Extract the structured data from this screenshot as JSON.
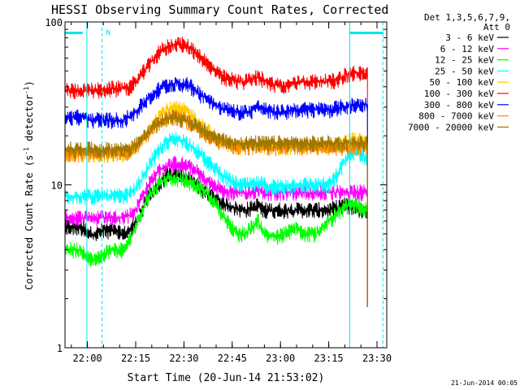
{
  "chart_data": {
    "type": "line",
    "title": "HESSI Observing Summary Count Rates, Corrected",
    "xlabel": "Start Time (20-Jun-14 21:53:02)",
    "ylabel": "Corrected Count Rate (s⁻¹ detector⁻¹)",
    "ylabel_main": "Corrected Count Rate (s",
    "ylabel_sup1": "-1",
    "ylabel_mid": " detector",
    "ylabel_sup2": "-1",
    "ylabel_end": ")",
    "x_unit": "minutes since 21:53:02",
    "xlim": [
      0,
      100
    ],
    "ylim": [
      1,
      100
    ],
    "y_scale": "log",
    "x_tick_labels": [
      "22:00",
      "22:15",
      "22:30",
      "22:45",
      "23:00",
      "23:15",
      "23:30"
    ],
    "x_tick_minutes": [
      6.97,
      21.97,
      36.97,
      51.97,
      66.97,
      81.97,
      96.97
    ],
    "y_tick_labels": [
      "1",
      "10",
      "100"
    ],
    "y_tick_values": [
      1,
      10,
      100
    ],
    "legend_header": [
      "Det 1,3,5,6,7,9,",
      "Att 0"
    ],
    "legend_placement": "right-outside",
    "flag_label": "N",
    "flag_bars": [
      [
        -6,
        5.5
      ],
      [
        88.5,
        99
      ]
    ],
    "flag_verticals": [
      6.8,
      11.5,
      88.5,
      98.8
    ],
    "footer_date": "21-Jun-2014 00:05",
    "series": [
      {
        "name": "3 - 6 keV",
        "color": "#000000",
        "x": [
          0,
          5,
          8,
          10,
          12,
          15,
          18,
          20,
          22,
          24,
          26,
          28,
          30,
          32,
          34,
          36,
          38,
          40,
          42,
          44,
          46,
          48,
          50,
          52,
          54,
          56,
          58,
          60,
          62,
          64,
          66,
          68,
          70,
          72,
          74,
          76,
          78,
          80,
          82,
          84,
          86,
          88,
          90,
          92,
          94
        ],
        "y": [
          5.5,
          5.5,
          5.0,
          5.0,
          5.3,
          5.2,
          5.0,
          5.2,
          5.8,
          7.0,
          8.5,
          9.5,
          10.5,
          11.5,
          11.5,
          11.5,
          11.0,
          10.5,
          9.5,
          9.0,
          8.5,
          8.0,
          7.5,
          7.3,
          7.0,
          7.0,
          7.2,
          7.5,
          7.0,
          7.0,
          7.0,
          7.0,
          7.0,
          7.0,
          7.0,
          7.0,
          7.0,
          7.0,
          7.0,
          7.2,
          7.5,
          7.5,
          7.2,
          7.0,
          7.0
        ]
      },
      {
        "name": "6 - 12 keV",
        "color": "#ff00ff",
        "x": [
          0,
          5,
          8,
          10,
          12,
          15,
          18,
          20,
          22,
          24,
          26,
          28,
          30,
          32,
          34,
          36,
          38,
          40,
          42,
          44,
          46,
          48,
          50,
          52,
          54,
          56,
          58,
          60,
          62,
          64,
          66,
          68,
          70,
          72,
          74,
          76,
          78,
          80,
          82,
          84,
          86,
          88,
          90,
          92,
          94
        ],
        "y": [
          6.3,
          6.3,
          6.3,
          6.2,
          6.3,
          6.3,
          6.3,
          6.5,
          7.0,
          8.5,
          10.0,
          11.5,
          12.5,
          13.0,
          13.5,
          13.5,
          13.0,
          12.5,
          11.5,
          10.5,
          10.0,
          9.5,
          9.0,
          9.0,
          9.0,
          8.8,
          9.0,
          9.5,
          9.0,
          9.0,
          9.0,
          9.0,
          9.0,
          9.0,
          9.0,
          9.0,
          9.0,
          9.0,
          9.0,
          9.0,
          9.0,
          9.0,
          9.0,
          9.0,
          9.0
        ]
      },
      {
        "name": "12 - 25 keV",
        "color": "#00ff00",
        "x": [
          0,
          5,
          8,
          10,
          12,
          15,
          18,
          20,
          22,
          24,
          26,
          28,
          30,
          32,
          34,
          36,
          38,
          40,
          42,
          44,
          46,
          48,
          50,
          52,
          54,
          56,
          58,
          60,
          62,
          64,
          66,
          68,
          70,
          72,
          74,
          76,
          78,
          80,
          82,
          84,
          86,
          88,
          90,
          92,
          94
        ],
        "y": [
          4.0,
          4.0,
          3.5,
          3.5,
          3.8,
          4.0,
          4.0,
          4.5,
          5.5,
          7.0,
          8.5,
          9.5,
          10.5,
          11.0,
          11.0,
          10.8,
          10.5,
          10.0,
          9.5,
          9.0,
          8.0,
          7.0,
          6.0,
          5.5,
          5.0,
          5.0,
          5.5,
          6.0,
          5.0,
          4.8,
          4.8,
          5.0,
          5.2,
          5.5,
          5.0,
          5.0,
          5.0,
          5.5,
          6.0,
          6.5,
          7.0,
          7.5,
          7.5,
          7.2,
          7.0
        ]
      },
      {
        "name": "25 - 50 keV",
        "color": "#00ffff",
        "x": [
          0,
          5,
          8,
          10,
          12,
          15,
          18,
          20,
          22,
          24,
          26,
          28,
          30,
          32,
          34,
          36,
          38,
          40,
          42,
          44,
          46,
          48,
          50,
          52,
          54,
          56,
          58,
          60,
          62,
          64,
          66,
          68,
          70,
          72,
          74,
          76,
          78,
          80,
          82,
          84,
          86,
          88,
          90,
          92,
          94
        ],
        "y": [
          8.5,
          8.5,
          8.5,
          8.5,
          8.5,
          8.5,
          8.5,
          8.8,
          9.5,
          11.0,
          13.0,
          15.0,
          17.0,
          18.5,
          19.0,
          19.0,
          18.0,
          17.0,
          15.5,
          14.0,
          13.0,
          12.0,
          11.0,
          10.5,
          10.0,
          10.0,
          10.0,
          10.2,
          10.0,
          9.8,
          9.8,
          9.8,
          10.0,
          10.0,
          10.0,
          10.0,
          10.0,
          10.0,
          10.0,
          11.0,
          13.0,
          15.0,
          16.0,
          15.5,
          14.5
        ]
      },
      {
        "name": "50 - 100 keV",
        "color": "#ffcc00",
        "x": [
          0,
          5,
          8,
          10,
          12,
          15,
          18,
          20,
          22,
          24,
          26,
          28,
          30,
          32,
          34,
          36,
          38,
          40,
          42,
          44,
          46,
          48,
          50,
          52,
          54,
          56,
          58,
          60,
          62,
          64,
          66,
          68,
          70,
          72,
          74,
          76,
          78,
          80,
          82,
          84,
          86,
          88,
          90,
          92,
          94
        ],
        "y": [
          15.5,
          15.5,
          15.5,
          15.5,
          15.5,
          15.5,
          15.5,
          16.0,
          17.0,
          19.0,
          22.0,
          25.0,
          27.5,
          29.0,
          29.5,
          29.0,
          28.0,
          26.0,
          24.0,
          22.0,
          20.0,
          19.0,
          18.0,
          17.5,
          17.0,
          17.0,
          17.2,
          17.5,
          17.0,
          17.0,
          17.0,
          17.0,
          17.0,
          17.0,
          17.0,
          17.0,
          17.0,
          17.0,
          17.0,
          17.5,
          18.0,
          18.5,
          19.0,
          18.5,
          18.0
        ]
      },
      {
        "name": "100 - 300 keV",
        "color": "#ff0000",
        "x": [
          0,
          5,
          8,
          10,
          12,
          15,
          18,
          20,
          22,
          24,
          26,
          28,
          30,
          32,
          34,
          36,
          38,
          40,
          42,
          44,
          46,
          48,
          50,
          52,
          54,
          56,
          58,
          60,
          62,
          64,
          66,
          68,
          70,
          72,
          74,
          76,
          78,
          80,
          82,
          84,
          86,
          88,
          90,
          92,
          94
        ],
        "y": [
          38.0,
          38.0,
          38.0,
          38.0,
          38.5,
          39.0,
          39.0,
          40.0,
          43.0,
          48.0,
          54.0,
          61.0,
          67.0,
          71.0,
          73.0,
          73.0,
          71.0,
          67.0,
          62.0,
          56.0,
          51.0,
          47.0,
          45.0,
          44.0,
          43.0,
          43.0,
          44.0,
          46.0,
          44.0,
          42.0,
          41.0,
          40.0,
          41.0,
          42.0,
          43.0,
          43.0,
          43.0,
          43.0,
          43.0,
          44.0,
          46.0,
          48.0,
          49.0,
          48.0,
          48.0
        ]
      },
      {
        "name": "300 - 800 keV",
        "color": "#0000ff",
        "x": [
          0,
          5,
          8,
          10,
          12,
          15,
          18,
          20,
          22,
          24,
          26,
          28,
          30,
          32,
          34,
          36,
          38,
          40,
          42,
          44,
          46,
          48,
          50,
          52,
          54,
          56,
          58,
          60,
          62,
          64,
          66,
          68,
          70,
          72,
          74,
          76,
          78,
          80,
          82,
          84,
          86,
          88,
          90,
          92,
          94
        ],
        "y": [
          26.0,
          26.0,
          25.0,
          25.0,
          25.0,
          25.0,
          25.0,
          26.0,
          28.0,
          31.0,
          34.0,
          37.0,
          39.5,
          41.0,
          42.0,
          42.0,
          41.0,
          39.0,
          36.0,
          34.0,
          32.0,
          30.0,
          29.0,
          28.5,
          28.0,
          28.0,
          28.5,
          30.0,
          29.0,
          28.0,
          28.0,
          28.0,
          28.5,
          29.0,
          29.0,
          29.0,
          29.0,
          29.0,
          29.0,
          29.5,
          30.0,
          30.5,
          31.0,
          31.0,
          31.0
        ]
      },
      {
        "name": "800 - 7000 keV",
        "color": "#ff8c00",
        "x": [
          0,
          5,
          8,
          10,
          12,
          15,
          18,
          20,
          22,
          24,
          26,
          28,
          30,
          32,
          34,
          36,
          38,
          40,
          42,
          44,
          46,
          48,
          50,
          52,
          54,
          56,
          58,
          60,
          62,
          64,
          66,
          68,
          70,
          72,
          74,
          76,
          78,
          80,
          82,
          84,
          86,
          88,
          90,
          92,
          94
        ],
        "y": [
          15.5,
          15.5,
          15.5,
          15.5,
          15.5,
          15.5,
          15.5,
          16.0,
          17.0,
          19.0,
          21.0,
          23.0,
          24.5,
          25.5,
          26.0,
          25.5,
          24.5,
          23.0,
          21.5,
          20.0,
          19.0,
          18.5,
          18.0,
          17.5,
          17.0,
          17.0,
          17.0,
          17.5,
          17.0,
          17.0,
          17.0,
          17.0,
          17.0,
          17.0,
          17.0,
          17.0,
          17.0,
          17.0,
          17.0,
          17.0,
          17.0,
          17.0,
          17.0,
          17.0,
          17.0
        ]
      },
      {
        "name": "7000 - 20000 keV",
        "color": "#a07800",
        "x": [
          0,
          5,
          8,
          10,
          12,
          15,
          18,
          20,
          22,
          24,
          26,
          28,
          30,
          32,
          34,
          36,
          38,
          40,
          42,
          44,
          46,
          48,
          50,
          52,
          54,
          56,
          58,
          60,
          62,
          64,
          66,
          68,
          70,
          72,
          74,
          76,
          78,
          80,
          82,
          84,
          86,
          88,
          90,
          92,
          94
        ],
        "y": [
          16.5,
          16.5,
          16.5,
          16.5,
          16.5,
          16.5,
          16.5,
          16.8,
          17.5,
          19.0,
          21.0,
          23.0,
          24.5,
          25.5,
          26.0,
          25.5,
          24.5,
          23.5,
          22.0,
          21.0,
          20.0,
          19.0,
          18.5,
          18.0,
          18.0,
          18.0,
          18.0,
          18.0,
          18.0,
          18.0,
          18.0,
          18.0,
          18.0,
          18.0,
          18.0,
          18.0,
          18.0,
          18.0,
          18.0,
          18.0,
          18.0,
          18.0,
          18.0,
          18.0,
          18.0
        ]
      }
    ]
  }
}
